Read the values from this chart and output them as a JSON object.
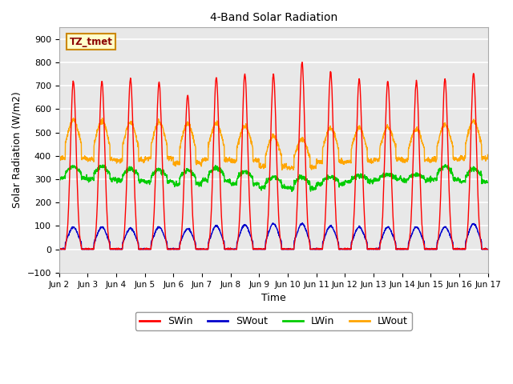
{
  "title": "4-Band Solar Radiation",
  "xlabel": "Time",
  "ylabel": "Solar Radiation (W/m2)",
  "annotation": "TZ_tmet",
  "ylim": [
    -100,
    950
  ],
  "yticks": [
    -100,
    0,
    100,
    200,
    300,
    400,
    500,
    600,
    700,
    800,
    900
  ],
  "n_days": 15,
  "background_color": "#e8e8e8",
  "plot_bg_color": "#e8e8e8",
  "outer_bg_color": "#ffffff",
  "grid_color": "#ffffff",
  "colors": {
    "SWin": "#ff0000",
    "SWout": "#0000cc",
    "LWin": "#00cc00",
    "LWout": "#ffa500"
  },
  "legend_entries": [
    "SWin",
    "SWout",
    "LWin",
    "LWout"
  ],
  "tick_labels": [
    "Jun 2",
    "Jun 3",
    "Jun 4",
    "Jun 5",
    "Jun 6",
    "Jun 7",
    "Jun 8",
    "Jun 9",
    "Jun 10",
    "Jun 11",
    "Jun 12",
    "Jun 13",
    "Jun 14",
    "Jun 15",
    "Jun 16",
    "Jun 17"
  ],
  "SWin_peaks": [
    720,
    720,
    730,
    715,
    660,
    735,
    750,
    750,
    800,
    760,
    730,
    720,
    720,
    730,
    755
  ],
  "SWout_peaks": [
    95,
    95,
    90,
    95,
    88,
    100,
    105,
    110,
    110,
    100,
    95,
    95,
    95,
    95,
    110
  ],
  "LWin_base": [
    305,
    300,
    295,
    290,
    280,
    295,
    280,
    265,
    260,
    280,
    290,
    300,
    295,
    300,
    290
  ],
  "LWin_bump": [
    50,
    55,
    50,
    50,
    60,
    55,
    55,
    45,
    50,
    30,
    25,
    20,
    25,
    55,
    55
  ],
  "LWout_base": [
    390,
    385,
    380,
    390,
    370,
    385,
    380,
    355,
    350,
    375,
    375,
    385,
    380,
    385,
    390
  ],
  "LWout_bump": [
    165,
    165,
    165,
    155,
    170,
    155,
    150,
    130,
    120,
    145,
    145,
    140,
    135,
    150,
    160
  ]
}
